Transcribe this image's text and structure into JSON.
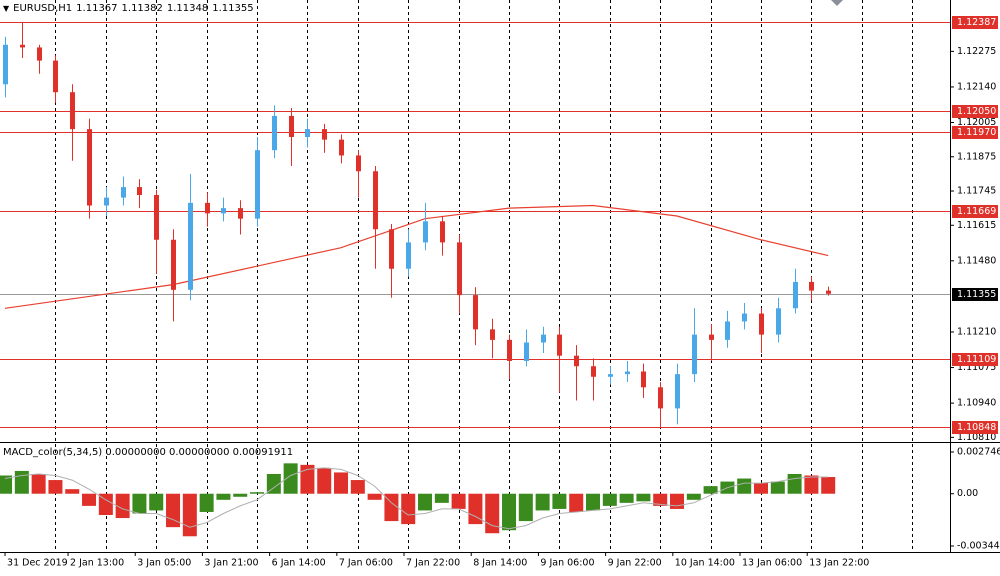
{
  "header": {
    "symbol": "EURUSD,H1",
    "open": 1.11367,
    "high": 1.11382,
    "low": 1.11348,
    "close": 1.11355
  },
  "chart_data": [
    {
      "type": "candlestick",
      "x": [
        0,
        4,
        8,
        12,
        16,
        20,
        24,
        28,
        32,
        36,
        40,
        44,
        48,
        52,
        56,
        60,
        64,
        68,
        72,
        76,
        80,
        84,
        88,
        92,
        96,
        100,
        104,
        108,
        112,
        116,
        120,
        124,
        128,
        132,
        136,
        140,
        144,
        148,
        152,
        156,
        160,
        164,
        168,
        172,
        176,
        180,
        184,
        188,
        192,
        196
      ],
      "open": [
        1.1215,
        1.123,
        1.1229,
        1.1224,
        1.1212,
        1.1198,
        1.1169,
        1.1172,
        1.1176,
        1.1173,
        1.1156,
        1.1137,
        1.117,
        1.1166,
        1.1168,
        1.1164,
        1.119,
        1.1203,
        1.1195,
        1.1198,
        1.1194,
        1.1188,
        1.1182,
        1.116,
        1.1145,
        1.1155,
        1.1163,
        1.1155,
        1.1135,
        1.1122,
        1.1118,
        1.111,
        1.1117,
        1.112,
        1.1112,
        1.1108,
        1.1104,
        1.1105,
        1.1106,
        1.11,
        1.1092,
        1.1105,
        1.112,
        1.1118,
        1.1125,
        1.1128,
        1.112,
        1.113,
        1.114,
        1.11367
      ],
      "high": [
        1.1233,
        1.12387,
        1.123,
        1.1226,
        1.1215,
        1.1202,
        1.1176,
        1.118,
        1.1179,
        1.1175,
        1.116,
        1.1181,
        1.1174,
        1.1172,
        1.1171,
        1.1195,
        1.1207,
        1.1206,
        1.1202,
        1.12,
        1.1196,
        1.119,
        1.1184,
        1.1162,
        1.116,
        1.117,
        1.1165,
        1.1158,
        1.1138,
        1.1126,
        1.112,
        1.1122,
        1.1123,
        1.1123,
        1.1116,
        1.1111,
        1.1108,
        1.111,
        1.1109,
        1.1102,
        1.1109,
        1.113,
        1.1124,
        1.1129,
        1.1132,
        1.113,
        1.1134,
        1.1145,
        1.1142,
        1.11382
      ],
      "low": [
        1.121,
        1.1225,
        1.1219,
        1.1208,
        1.1186,
        1.1164,
        1.1165,
        1.1169,
        1.1168,
        1.1143,
        1.1125,
        1.1133,
        1.1161,
        1.1163,
        1.1158,
        1.1161,
        1.1187,
        1.1184,
        1.1191,
        1.1189,
        1.1185,
        1.1172,
        1.1145,
        1.1134,
        1.1142,
        1.1152,
        1.115,
        1.1128,
        1.1116,
        1.1111,
        1.1103,
        1.1108,
        1.1113,
        1.1098,
        1.1095,
        1.1095,
        1.1101,
        1.1102,
        1.1096,
        1.10848,
        1.1086,
        1.1102,
        1.111,
        1.1115,
        1.1122,
        1.1113,
        1.1117,
        1.1128,
        1.1133,
        1.11348
      ],
      "close": [
        1.123,
        1.1229,
        1.1224,
        1.1212,
        1.1198,
        1.1169,
        1.1172,
        1.1176,
        1.1173,
        1.1156,
        1.1137,
        1.117,
        1.1166,
        1.1168,
        1.1164,
        1.119,
        1.1203,
        1.1195,
        1.1198,
        1.1194,
        1.1188,
        1.1182,
        1.116,
        1.1145,
        1.1155,
        1.1163,
        1.1155,
        1.1135,
        1.1122,
        1.1118,
        1.111,
        1.1117,
        1.112,
        1.1112,
        1.1108,
        1.1104,
        1.1105,
        1.1106,
        1.11,
        1.1092,
        1.1105,
        1.112,
        1.1118,
        1.1125,
        1.1128,
        1.112,
        1.113,
        1.114,
        1.11367,
        1.11355
      ],
      "up_color": "#4aa8e8",
      "down_color": "#e0302a",
      "ma": {
        "color": "#e84030",
        "x": [
          0,
          40,
          80,
          100,
          120,
          140,
          160,
          180,
          196
        ],
        "values": [
          1.113,
          1.1139,
          1.1153,
          1.1164,
          1.1168,
          1.1169,
          1.1165,
          1.1156,
          1.115
        ]
      },
      "levels": [
        1.12387,
        {
          "value": 1.1205,
          "label": "1.12050"
        },
        {
          "value": 1.1197,
          "label": "1.11970"
        },
        1.11669,
        1.11109,
        1.10848
      ],
      "level_color": "#e0302a",
      "last_price": 1.11355,
      "xlim": [
        -1.2,
        225
      ],
      "ylim": [
        1.108,
        1.1247
      ],
      "yticks": [
        1.12275,
        {
          "value": 1.1214,
          "label": "1.12140"
        },
        1.12005,
        1.11875,
        1.11745,
        1.11615,
        {
          "value": 1.1148,
          "label": "1.11480"
        },
        {
          "value": 1.1121,
          "label": "1.11210"
        },
        1.11075,
        {
          "value": 1.1094,
          "label": "1.10940"
        },
        {
          "value": 1.1081,
          "label": "1.10810"
        }
      ],
      "xticks": [
        {
          "value": 0,
          "label": "31 Dec 2019"
        },
        {
          "value": 15,
          "label": "2 Jan 13:00"
        },
        {
          "value": 31,
          "label": "3 Jan 05:00"
        },
        {
          "value": 47,
          "label": "3 Jan 21:00"
        },
        {
          "value": 63,
          "label": "6 Jan 14:00"
        },
        {
          "value": 79,
          "label": "7 Jan 06:00"
        },
        {
          "value": 95,
          "label": "7 Jan 22:00"
        },
        {
          "value": 111,
          "label": "8 Jan 14:00"
        },
        {
          "value": 127,
          "label": "9 Jan 06:00"
        },
        {
          "value": 143,
          "label": "9 Jan 22:00"
        },
        {
          "value": 159,
          "label": "10 Jan 14:00"
        },
        {
          "value": 175,
          "label": "13 Jan 06:00"
        },
        {
          "value": 191,
          "label": "13 Jan 22:00"
        }
      ],
      "xgrid": [
        12,
        24,
        36,
        48,
        60,
        72,
        84,
        96,
        108,
        120,
        132,
        144,
        156,
        168,
        180,
        192,
        204,
        216
      ]
    },
    {
      "type": "bar",
      "title": "MACD_color(5,34,5) 0.00000000 0.00000000 0.00091911",
      "values": [
        0.0012,
        0.0015,
        0.0013,
        0.0009,
        0.0003,
        -0.0008,
        -0.0014,
        -0.0016,
        -0.0013,
        -0.0011,
        -0.0022,
        -0.0028,
        -0.0012,
        -0.0004,
        -0.0002,
        0.0001,
        0.0013,
        0.002,
        0.0019,
        0.0017,
        0.0014,
        0.0009,
        -0.0004,
        -0.0018,
        -0.002,
        -0.0011,
        -0.0006,
        -0.001,
        -0.002,
        -0.0026,
        -0.0024,
        -0.0018,
        -0.0011,
        -0.001,
        -0.0012,
        -0.0011,
        -0.0008,
        -0.0006,
        -0.0005,
        -0.0008,
        -0.001,
        -0.0004,
        0.0005,
        0.0008,
        0.001,
        0.0007,
        0.0008,
        0.0013,
        0.0012,
        0.0011
      ],
      "signal": [
        0.001,
        0.0012,
        0.0013,
        0.0012,
        0.0009,
        0.0003,
        -0.0004,
        -0.001,
        -0.0013,
        -0.0013,
        -0.0017,
        -0.0022,
        -0.0019,
        -0.0013,
        -0.0008,
        -0.0004,
        0.0004,
        0.0012,
        0.0016,
        0.0017,
        0.0016,
        0.0012,
        0.0005,
        -0.0006,
        -0.0014,
        -0.0013,
        -0.001,
        -0.001,
        -0.0015,
        -0.0021,
        -0.0023,
        -0.0021,
        -0.0016,
        -0.0013,
        -0.0012,
        -0.0011,
        -0.001,
        -0.0008,
        -0.0006,
        -0.0007,
        -0.0008,
        -0.0006,
        -0.0001,
        0.0004,
        0.0007,
        0.0007,
        0.0008,
        0.001,
        0.0011,
        0.0011
      ],
      "rise_color": "#3a8a1e",
      "fall_color": "#e0302a",
      "signal_color": "#b0b0b0",
      "ylim": [
        -0.003835,
        0.003207
      ],
      "yticks": [
        0.002746,
        {
          "value": 0,
          "label": "0.00"
        },
        {
          "value": -0.00344,
          "label": "-0.003440"
        }
      ]
    }
  ]
}
